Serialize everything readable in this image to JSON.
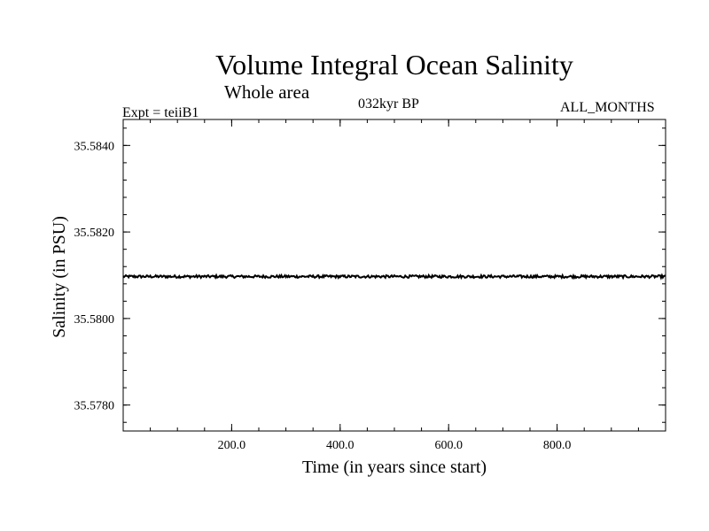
{
  "chart_data": {
    "type": "line",
    "title": "Volume Integral Ocean Salinity",
    "subtitle": "Whole area",
    "annotations": {
      "experiment": "Expt = teiiB1",
      "period": "032kyr BP",
      "months": "ALL_MONTHS"
    },
    "xlabel": "Time (in years since start)",
    "ylabel": "Salinity (in PSU)",
    "xlim": [
      0,
      1000
    ],
    "ylim": [
      35.5774,
      35.5846
    ],
    "xticks": [
      200,
      400,
      600,
      800
    ],
    "xtick_labels": [
      "200.0",
      "400.0",
      "600.0",
      "800.0"
    ],
    "yticks": [
      35.578,
      35.58,
      35.582,
      35.584
    ],
    "ytick_labels": [
      "35.5780",
      "35.5800",
      "35.5820",
      "35.5840"
    ],
    "x_minor_step": 50,
    "y_minor_step": 0.0004,
    "grid": false,
    "series": [
      {
        "values_summary": "nearly constant with small noise",
        "x": [
          0,
          100,
          200,
          300,
          400,
          500,
          600,
          700,
          800,
          900,
          1000
        ],
        "y": [
          35.58097,
          35.58097,
          35.58097,
          35.58097,
          35.58097,
          35.58097,
          35.58097,
          35.58097,
          35.58097,
          35.58097,
          35.58097
        ],
        "noise_amplitude": 3e-05
      }
    ]
  }
}
